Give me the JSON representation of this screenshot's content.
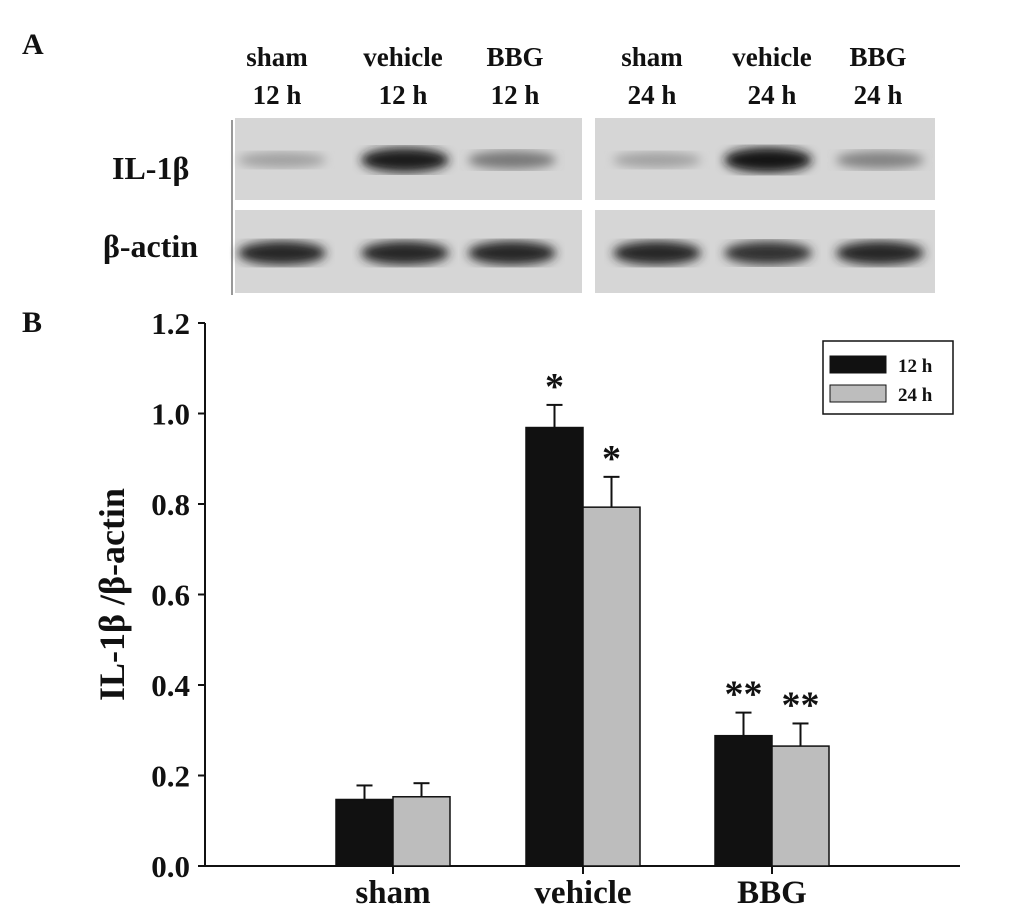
{
  "panel_a": {
    "label": "A",
    "lanes": [
      {
        "group": "sham",
        "time": "12 h"
      },
      {
        "group": "vehicle",
        "time": "12 h"
      },
      {
        "group": "BBG",
        "time": "12 h"
      },
      {
        "group": "sham",
        "time": "24 h"
      },
      {
        "group": "vehicle",
        "time": "24 h"
      },
      {
        "group": "BBG",
        "time": "24 h"
      }
    ],
    "rows": [
      {
        "label": "IL-1β",
        "band_intensity": [
          0.25,
          0.9,
          0.45,
          0.25,
          0.95,
          0.4
        ]
      },
      {
        "label": "β-actin",
        "band_intensity": [
          0.85,
          0.85,
          0.85,
          0.85,
          0.8,
          0.85
        ]
      }
    ]
  },
  "chart_data": {
    "panel_label": "B",
    "type": "bar",
    "categories": [
      "sham",
      "vehicle",
      "BBG"
    ],
    "ylabel": "IL-1β /β-actin",
    "ylim": [
      0,
      1.2
    ],
    "yticks": [
      "0.0",
      "0.2",
      "0.4",
      "0.6",
      "0.8",
      "1.0",
      "1.2"
    ],
    "legend_position": "top-right",
    "grid": false,
    "series": [
      {
        "name": "12 h",
        "color": "#111111",
        "values": [
          0.147,
          0.969,
          0.288
        ],
        "errors": [
          0.031,
          0.05,
          0.051
        ],
        "annotations": [
          "",
          "*",
          "**"
        ]
      },
      {
        "name": "24 h",
        "color": "#bdbdbd",
        "values": [
          0.153,
          0.793,
          0.265
        ],
        "errors": [
          0.03,
          0.067,
          0.05
        ],
        "annotations": [
          "",
          "*",
          "**"
        ]
      }
    ]
  }
}
